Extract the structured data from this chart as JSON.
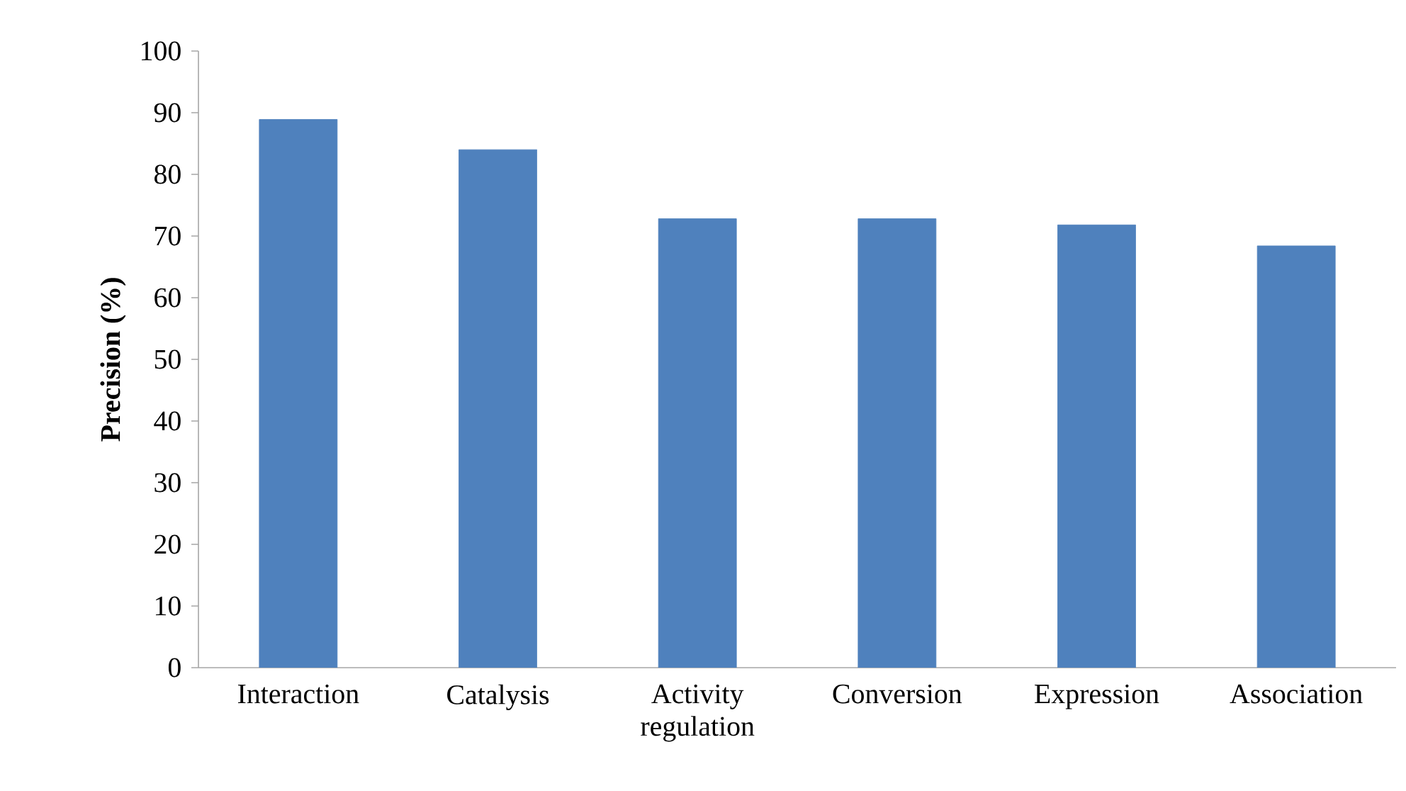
{
  "chart_data": {
    "type": "bar",
    "ylabel": "Precision (%)",
    "categories": [
      "Interaction",
      "Catalysis",
      "Activity regulation",
      "Conversion",
      "Expression",
      "Association"
    ],
    "values": [
      88.9,
      84.0,
      72.8,
      72.8,
      71.8,
      68.4
    ],
    "color": "#4f81bd",
    "ylim": [
      0,
      100
    ],
    "yticks": [
      0,
      10,
      20,
      30,
      40,
      50,
      60,
      70,
      80,
      90,
      100
    ],
    "grid": false
  }
}
